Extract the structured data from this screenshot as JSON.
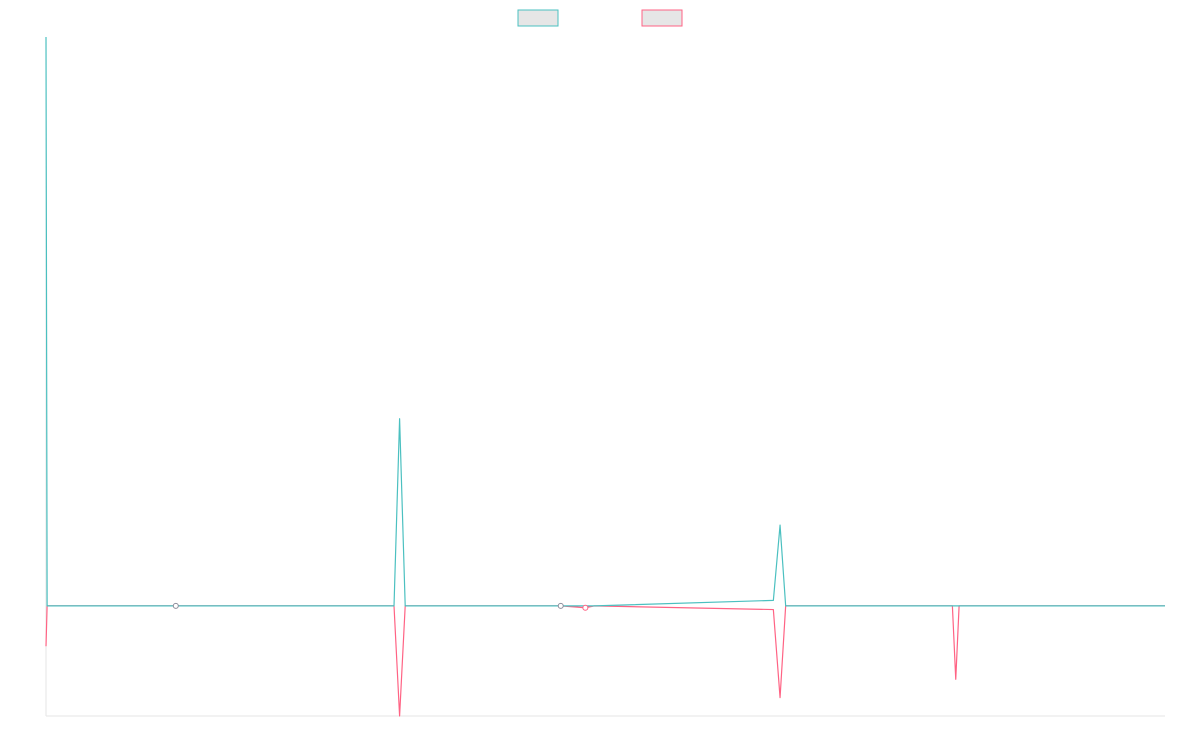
{
  "chart_data": {
    "type": "line",
    "title": "",
    "xlabel": "",
    "ylabel": "",
    "xlim": [
      0,
      100
    ],
    "ylim": [
      -6,
      31
    ],
    "grid": false,
    "legend": "top-center",
    "x": [
      0.0,
      0.1,
      0.3,
      11.6,
      31.1,
      31.6,
      32.1,
      46.0,
      48.2,
      49.0,
      65.0,
      65.6,
      66.1,
      81.0,
      81.3,
      81.6,
      100.0
    ],
    "series": [
      {
        "name": "",
        "color": "#4bc0c0",
        "values": [
          31.0,
          0.0,
          0.0,
          0.0,
          0.0,
          10.2,
          0.0,
          0.0,
          0.0,
          0.0,
          0.3,
          4.4,
          0.0,
          0.0,
          0.0,
          0.0,
          0.0
        ]
      },
      {
        "name": "",
        "color": "#ff6384",
        "values": [
          -2.2,
          0.0,
          0.0,
          0.0,
          0.0,
          -6.0,
          0.0,
          0.0,
          -0.1,
          0.0,
          -0.2,
          -5.0,
          0.0,
          0.0,
          -4.0,
          0.0,
          0.0
        ]
      }
    ],
    "markers": [
      {
        "series": 0,
        "x": 11.6,
        "y": 0.0
      },
      {
        "series": 0,
        "x": 46.0,
        "y": 0.0
      },
      {
        "series": 1,
        "x": 48.2,
        "y": -0.1
      }
    ]
  }
}
